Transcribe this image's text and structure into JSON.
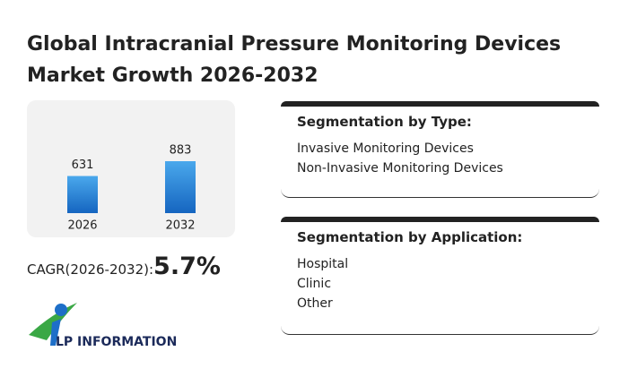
{
  "title": "Global Intracranial Pressure Monitoring Devices Market Growth 2026-2032",
  "chart_data": {
    "type": "bar",
    "categories": [
      "2026",
      "2032"
    ],
    "values": [
      631,
      883
    ],
    "color": "#1e7fd6"
  },
  "cagr": {
    "label": "CAGR(2026-2032):",
    "value": "5.7%"
  },
  "segments": [
    {
      "heading": "Segmentation by Type:",
      "items": [
        "Invasive Monitoring Devices",
        "Non-Invasive Monitoring Devices"
      ]
    },
    {
      "heading": "Segmentation by Application:",
      "items": [
        "Hospital",
        "Clinic",
        "Other"
      ]
    }
  ],
  "logo": "LP INFORMATION"
}
